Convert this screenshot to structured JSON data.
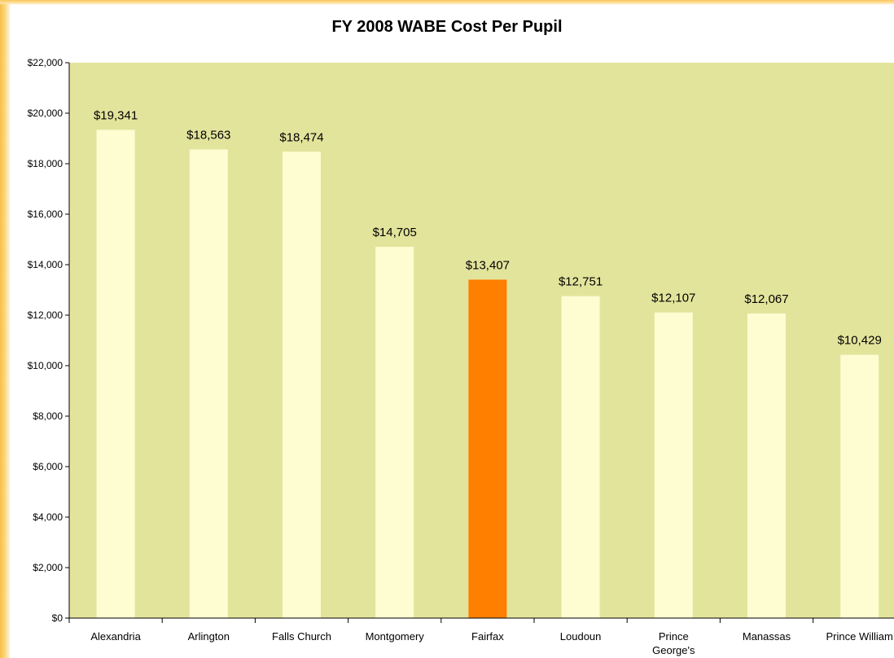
{
  "chart_data": {
    "type": "bar",
    "title": "FY 2008 WABE Cost Per Pupil",
    "xlabel": "",
    "ylabel": "",
    "ylim": [
      0,
      22000
    ],
    "yticks": [
      0,
      2000,
      4000,
      6000,
      8000,
      10000,
      12000,
      14000,
      16000,
      18000,
      20000,
      22000
    ],
    "ytick_labels": [
      "$0",
      "$2,000",
      "$4,000",
      "$6,000",
      "$8,000",
      "$10,000",
      "$12,000",
      "$14,000",
      "$16,000",
      "$18,000",
      "$20,000",
      "$22,000"
    ],
    "categories": [
      "Alexandria",
      "Arlington",
      "Falls Church",
      "Montgomery",
      "Fairfax",
      "Loudoun",
      "Prince George's",
      "Manassas",
      "Prince William"
    ],
    "values": [
      19341,
      18563,
      18474,
      14705,
      13407,
      12751,
      12107,
      12067,
      10429
    ],
    "data_labels": [
      "$19,341",
      "$18,563",
      "$18,474",
      "$14,705",
      "$13,407",
      "$12,751",
      "$12,107",
      "$12,067",
      "$10,429"
    ],
    "highlight_category": "Fairfax",
    "grid": false,
    "legend": "none",
    "colors": {
      "plot_background": "#e3e49c",
      "bar": "#fefcd1",
      "highlight_bar": "#ff7f00",
      "axis": "#000000",
      "frame_accent": "#f8bf4a"
    }
  }
}
